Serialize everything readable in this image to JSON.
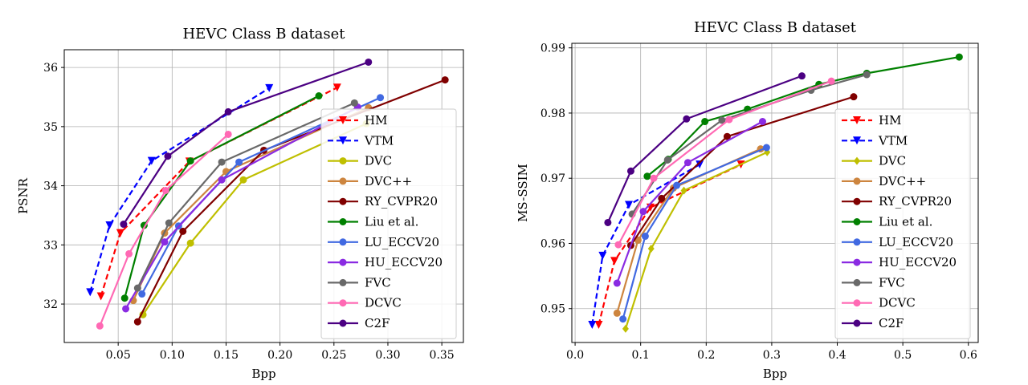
{
  "chart_data": [
    {
      "type": "line",
      "title": "HEVC Class B dataset",
      "xlabel": "Bpp",
      "ylabel": "PSNR",
      "xlim": [
        0.0,
        0.37
      ],
      "ylim": [
        31.35,
        36.3
      ],
      "xticks": [
        0.05,
        0.1,
        0.15,
        0.2,
        0.25,
        0.3,
        0.35
      ],
      "xtick_labels": [
        "0.05",
        "0.10",
        "0.15",
        "0.20",
        "0.25",
        "0.30",
        "0.35"
      ],
      "yticks": [
        32,
        33,
        34,
        35,
        36
      ],
      "ytick_labels": [
        "32",
        "33",
        "34",
        "35",
        "36"
      ],
      "grid": true,
      "legend_position": "lower-right",
      "series": [
        {
          "name": "HM",
          "color": "#ff0000",
          "marker": "triangle-down",
          "dashed": true,
          "x": [
            0.034,
            0.052,
            0.116,
            0.253
          ],
          "y": [
            32.13,
            33.2,
            34.41,
            35.66
          ]
        },
        {
          "name": "VTM",
          "color": "#0000ff",
          "marker": "triangle-down",
          "dashed": true,
          "x": [
            0.024,
            0.042,
            0.081,
            0.19
          ],
          "y": [
            32.2,
            33.33,
            34.42,
            35.65
          ]
        },
        {
          "name": "DVC",
          "color": "#bfbf00",
          "marker": "circle",
          "dashed": false,
          "x": [
            0.073,
            0.117,
            0.166,
            0.28
          ],
          "y": [
            31.82,
            33.03,
            34.1,
            35.05
          ]
        },
        {
          "name": "DVC++",
          "color": "#cd853f",
          "marker": "circle",
          "dashed": false,
          "x": [
            0.064,
            0.093,
            0.15,
            0.282
          ],
          "y": [
            32.06,
            33.2,
            34.24,
            35.32
          ]
        },
        {
          "name": "RY_CVPR20",
          "color": "#800000",
          "marker": "circle",
          "dashed": false,
          "x": [
            0.068,
            0.11,
            0.185,
            0.353
          ],
          "y": [
            31.7,
            33.23,
            34.6,
            35.79
          ]
        },
        {
          "name": "Liu et al.",
          "color": "#008000",
          "marker": "circle",
          "dashed": false,
          "x": [
            0.056,
            0.074,
            0.117,
            0.236
          ],
          "y": [
            32.1,
            33.33,
            34.42,
            35.52
          ]
        },
        {
          "name": "LU_ECCV20",
          "color": "#4169e1",
          "marker": "circle",
          "dashed": false,
          "x": [
            0.072,
            0.106,
            0.162,
            0.293
          ],
          "y": [
            32.17,
            33.32,
            34.4,
            35.49
          ]
        },
        {
          "name": "HU_ECCV20",
          "color": "#8a2be2",
          "marker": "circle",
          "dashed": false,
          "x": [
            0.057,
            0.093,
            0.146,
            0.272
          ],
          "y": [
            31.92,
            33.05,
            34.1,
            35.33
          ]
        },
        {
          "name": "FVC",
          "color": "#696969",
          "marker": "circle",
          "dashed": false,
          "x": [
            0.068,
            0.097,
            0.146,
            0.269
          ],
          "y": [
            32.27,
            33.37,
            34.4,
            35.4
          ]
        },
        {
          "name": "DCVC",
          "color": "#ff69b4",
          "marker": "circle",
          "dashed": false,
          "x": [
            0.033,
            0.06,
            0.094,
            0.152
          ],
          "y": [
            31.63,
            32.85,
            33.92,
            34.87
          ]
        },
        {
          "name": "C2F",
          "color": "#4b0082",
          "marker": "circle",
          "dashed": false,
          "x": [
            0.055,
            0.096,
            0.152,
            0.282
          ],
          "y": [
            33.35,
            34.5,
            35.25,
            36.09
          ]
        }
      ]
    },
    {
      "type": "line",
      "title": "HEVC Class B dataset",
      "xlabel": "Bpp",
      "ylabel": "MS-SSIM",
      "xlim": [
        -0.005,
        0.615
      ],
      "ylim": [
        0.9448,
        0.9907
      ],
      "xticks": [
        0.0,
        0.1,
        0.2,
        0.3,
        0.4,
        0.5,
        0.6
      ],
      "xtick_labels": [
        "0.0",
        "0.1",
        "0.2",
        "0.3",
        "0.4",
        "0.5",
        "0.6"
      ],
      "yticks": [
        0.95,
        0.96,
        0.97,
        0.98,
        0.99
      ],
      "ytick_labels": [
        "0.95",
        "0.96",
        "0.97",
        "0.98",
        "0.99"
      ],
      "grid": true,
      "legend_position": "lower-right",
      "series": [
        {
          "name": "HM",
          "color": "#ff0000",
          "marker": "triangle-down",
          "dashed": true,
          "x": [
            0.036,
            0.06,
            0.115,
            0.253
          ],
          "y": [
            0.9475,
            0.9573,
            0.9655,
            0.9721
          ]
        },
        {
          "name": "VTM",
          "color": "#0000ff",
          "marker": "triangle-down",
          "dashed": true,
          "x": [
            0.026,
            0.042,
            0.082,
            0.19
          ],
          "y": [
            0.9475,
            0.9581,
            0.9659,
            0.9721
          ]
        },
        {
          "name": "DVC",
          "color": "#bfbf00",
          "marker": "diamond",
          "dashed": false,
          "x": [
            0.077,
            0.116,
            0.166,
            0.293
          ],
          "y": [
            0.9469,
            0.9592,
            0.9681,
            0.974
          ]
        },
        {
          "name": "DVC++",
          "color": "#cd853f",
          "marker": "circle",
          "dashed": false,
          "x": [
            0.064,
            0.096,
            0.15,
            0.283
          ],
          "y": [
            0.9493,
            0.9605,
            0.9685,
            0.9745
          ]
        },
        {
          "name": "RY_CVPR20",
          "color": "#800000",
          "marker": "circle",
          "dashed": false,
          "x": [
            0.085,
            0.132,
            0.232,
            0.425
          ],
          "y": [
            0.9597,
            0.9669,
            0.9764,
            0.9825
          ]
        },
        {
          "name": "Liu et al.",
          "color": "#008000",
          "marker": "circle",
          "dashed": false,
          "x": [
            0.11,
            0.142,
            0.198,
            0.263,
            0.372,
            0.445,
            0.586
          ],
          "y": [
            0.9703,
            0.9729,
            0.9787,
            0.9806,
            0.9844,
            0.9861,
            0.9886
          ]
        },
        {
          "name": "LU_ECCV20",
          "color": "#4169e1",
          "marker": "circle",
          "dashed": false,
          "x": [
            0.073,
            0.107,
            0.155,
            0.292
          ],
          "y": [
            0.9484,
            0.9611,
            0.9689,
            0.9747
          ]
        },
        {
          "name": "HU_ECCV20",
          "color": "#8a2be2",
          "marker": "circle",
          "dashed": false,
          "x": [
            0.064,
            0.104,
            0.172,
            0.286
          ],
          "y": [
            0.9539,
            0.9649,
            0.9724,
            0.9787
          ]
        },
        {
          "name": "FVC",
          "color": "#696969",
          "marker": "circle",
          "dashed": false,
          "x": [
            0.087,
            0.141,
            0.224,
            0.36,
            0.445
          ],
          "y": [
            0.9645,
            0.9728,
            0.9789,
            0.9835,
            0.9859
          ]
        },
        {
          "name": "DCVC",
          "color": "#ff69b4",
          "marker": "circle",
          "dashed": false,
          "x": [
            0.066,
            0.12,
            0.235,
            0.391
          ],
          "y": [
            0.9598,
            0.97,
            0.979,
            0.9849
          ]
        },
        {
          "name": "C2F",
          "color": "#4b0082",
          "marker": "circle",
          "dashed": false,
          "x": [
            0.05,
            0.085,
            0.17,
            0.346
          ],
          "y": [
            0.9632,
            0.9711,
            0.9791,
            0.9857
          ]
        }
      ]
    }
  ]
}
